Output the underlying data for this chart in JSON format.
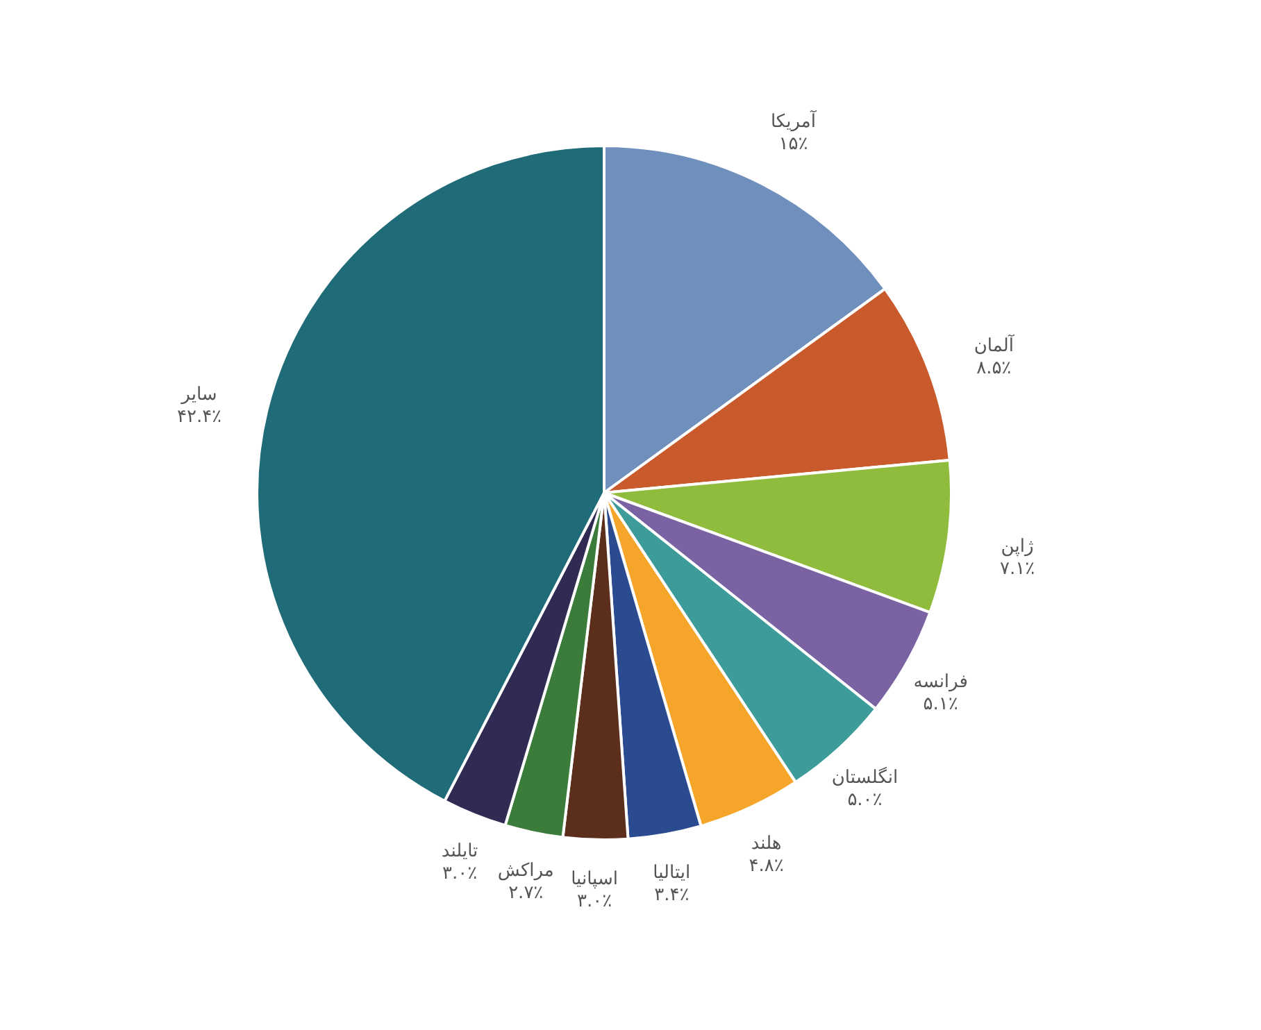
{
  "chart_data": {
    "type": "pie",
    "categories": [
      "آمریکا",
      "آلمان",
      "ژاپن",
      "فرانسه",
      "انگلستان",
      "هلند",
      "ایتالیا",
      "اسپانیا",
      "مراکش",
      "تایلند",
      "سایر"
    ],
    "values": [
      15,
      8.5,
      7.1,
      5.1,
      5.0,
      4.8,
      3.4,
      3.0,
      2.7,
      3.0,
      42.4
    ],
    "value_labels": [
      "۱۵٪",
      "۸.۵٪",
      "۷.۱٪",
      "۵.۱٪",
      "۵.۰٪",
      "۴.۸٪",
      "۳.۴٪",
      "۳.۰٪",
      "۲.۷٪",
      "۳.۰٪",
      "۴۲.۴٪"
    ],
    "colors": [
      "#6f8fbd",
      "#c95a2b",
      "#8fbc3c",
      "#7b62a3",
      "#3d9c9a",
      "#f5a62a",
      "#2b4b90",
      "#5b2f1c",
      "#3b7c3b",
      "#2f2b52",
      "#1f6b78"
    ],
    "legend": false
  }
}
